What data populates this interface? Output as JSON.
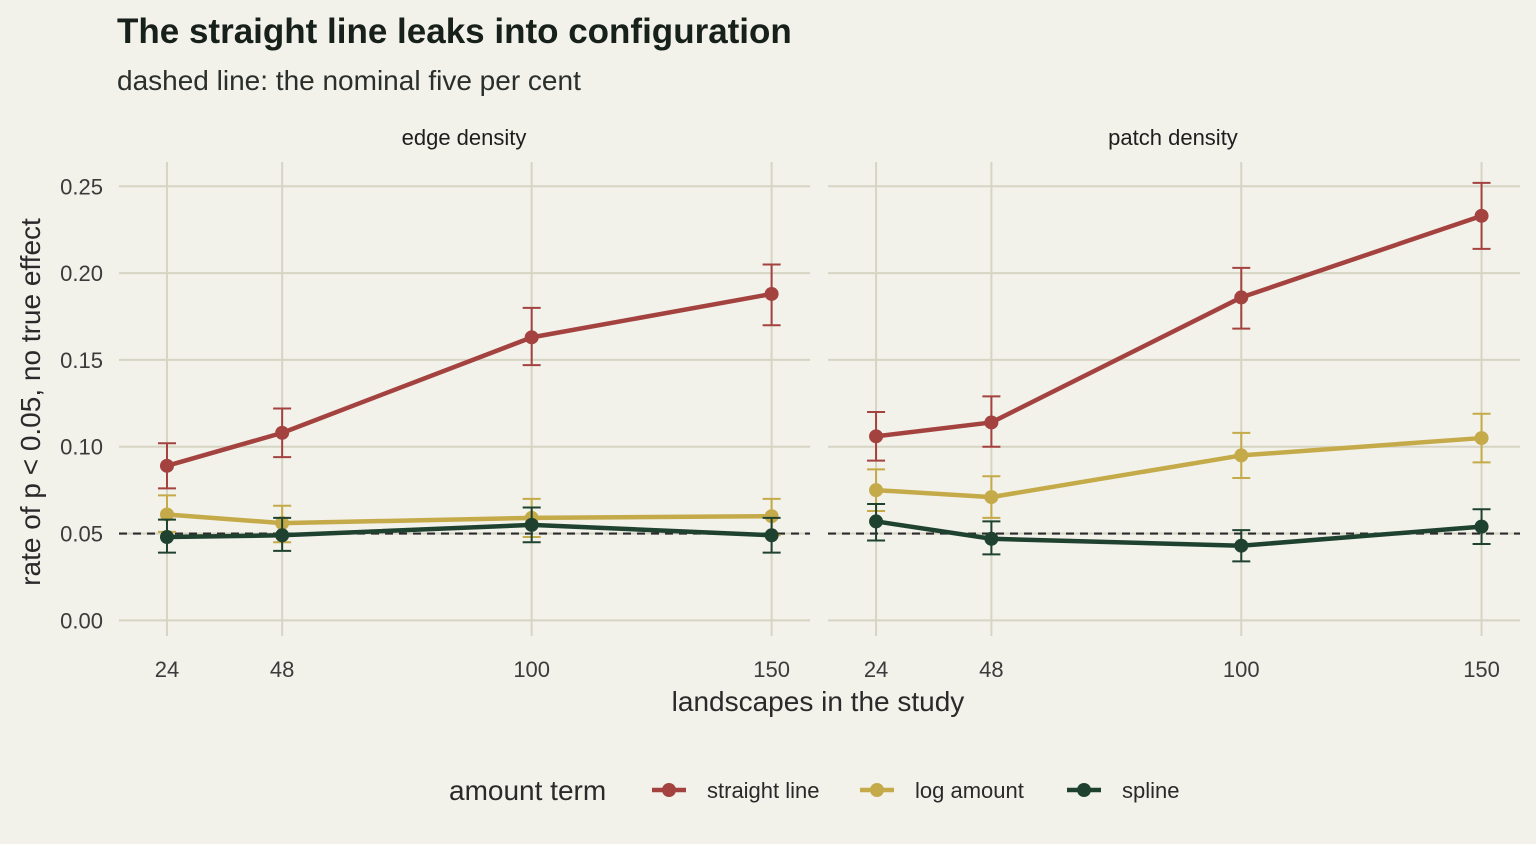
{
  "chart_data": {
    "type": "line",
    "title": "The straight line leaks into configuration",
    "subtitle": "dashed line: the nominal five per cent",
    "xlabel": "landscapes in the study",
    "ylabel": "rate of p < 0.05, no true effect",
    "x": [
      24,
      48,
      100,
      150
    ],
    "x_tick_labels": [
      "24",
      "48",
      "100",
      "150"
    ],
    "xlim": [
      14,
      158
    ],
    "ylim": [
      -0.009,
      0.264
    ],
    "y_ticks": [
      0.0,
      0.05,
      0.1,
      0.15,
      0.2,
      0.25
    ],
    "y_tick_labels": [
      "0.00",
      "0.05",
      "0.10",
      "0.15",
      "0.20",
      "0.25"
    ],
    "reference_line": 0.05,
    "grid": true,
    "legend_position": "bottom",
    "legend_title": "amount term",
    "panels": [
      {
        "name": "edge density",
        "series": [
          {
            "name": "straight line",
            "color": "#a3423f",
            "values": [
              0.089,
              0.108,
              0.163,
              0.188
            ],
            "lower": [
              0.076,
              0.094,
              0.147,
              0.17
            ],
            "upper": [
              0.102,
              0.122,
              0.18,
              0.205
            ]
          },
          {
            "name": "log amount",
            "color": "#c4aa48",
            "values": [
              0.061,
              0.056,
              0.059,
              0.06
            ],
            "lower": [
              0.051,
              0.045,
              0.048,
              0.049
            ],
            "upper": [
              0.072,
              0.066,
              0.07,
              0.07
            ]
          },
          {
            "name": "spline",
            "color": "#1f4230",
            "values": [
              0.048,
              0.049,
              0.055,
              0.049
            ],
            "lower": [
              0.039,
              0.04,
              0.045,
              0.039
            ],
            "upper": [
              0.058,
              0.059,
              0.065,
              0.059
            ]
          }
        ]
      },
      {
        "name": "patch density",
        "series": [
          {
            "name": "straight line",
            "color": "#a3423f",
            "values": [
              0.106,
              0.114,
              0.186,
              0.233
            ],
            "lower": [
              0.092,
              0.1,
              0.168,
              0.214
            ],
            "upper": [
              0.12,
              0.129,
              0.203,
              0.252
            ]
          },
          {
            "name": "log amount",
            "color": "#c4aa48",
            "values": [
              0.075,
              0.071,
              0.095,
              0.105
            ],
            "lower": [
              0.063,
              0.059,
              0.082,
              0.091
            ],
            "upper": [
              0.087,
              0.083,
              0.108,
              0.119
            ]
          },
          {
            "name": "spline",
            "color": "#1f4230",
            "values": [
              0.057,
              0.047,
              0.043,
              0.054
            ],
            "lower": [
              0.046,
              0.038,
              0.034,
              0.044
            ],
            "upper": [
              0.067,
              0.057,
              0.052,
              0.064
            ]
          }
        ]
      }
    ]
  }
}
